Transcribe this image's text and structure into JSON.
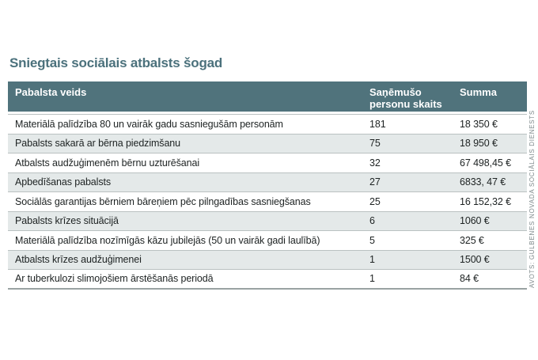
{
  "page": {
    "title": "Sniegtais sociālais atbalsts šogad",
    "source_note": "AVOTS: GULBENES NOVADA SOCIĀLAIS DIENESTS"
  },
  "chart_data": {
    "type": "table",
    "title": "Sniegtais sociālais atbalsts šogad",
    "columns": [
      "Pabalsta veids",
      "Saņēmušo personu skaits",
      "Summa"
    ],
    "rows": [
      [
        "Materiālā palīdzība 80 un vairāk gadu sasniegušām personām",
        "181",
        "18 350 €"
      ],
      [
        "Pabalsts sakarā ar bērna piedzimšanu",
        "75",
        "18 950 €"
      ],
      [
        "Atbalsts audžuģimenēm bērnu uzturēšanai",
        "32",
        "67 498,45 €"
      ],
      [
        "Apbedīšanas pabalsts",
        "27",
        "6833, 47 €"
      ],
      [
        "Sociālās garantijas bērniem bāreņiem pēc pilngadības sasniegšanas",
        "25",
        "16 152,32 €"
      ],
      [
        "Pabalsts krīzes situācijā",
        "6",
        "1060 €"
      ],
      [
        "Materiālā palīdzība nozīmīgās kāzu jubilejās (50 un vairāk gadi laulībā)",
        "5",
        "325 €"
      ],
      [
        "Atbalsts krīzes audžuģimenei",
        "1",
        "1500 €"
      ],
      [
        "Ar tuberkulozi slimojošiem ārstēšanās periodā",
        "1",
        "84 €"
      ]
    ],
    "source": "AVOTS: GULBENES NOVADA SOCIĀLAIS DIENESTS",
    "layout": {
      "header_position": "top",
      "zebra_striping": true,
      "striped_row_indices": [
        2,
        4,
        6,
        8
      ],
      "column_alignment": [
        "left",
        "left",
        "left"
      ]
    }
  },
  "colors": {
    "header_bg": "#50737c",
    "header_text": "#ffffff",
    "title_text": "#4b717c",
    "row_bg": "#ffffff",
    "row_alt_bg": "#e4e9e9",
    "row_rule": "#bac1c1",
    "table_bottom_rule": "#99a2a2",
    "body_text": "#1d2222",
    "source_text": "#7e898b"
  }
}
